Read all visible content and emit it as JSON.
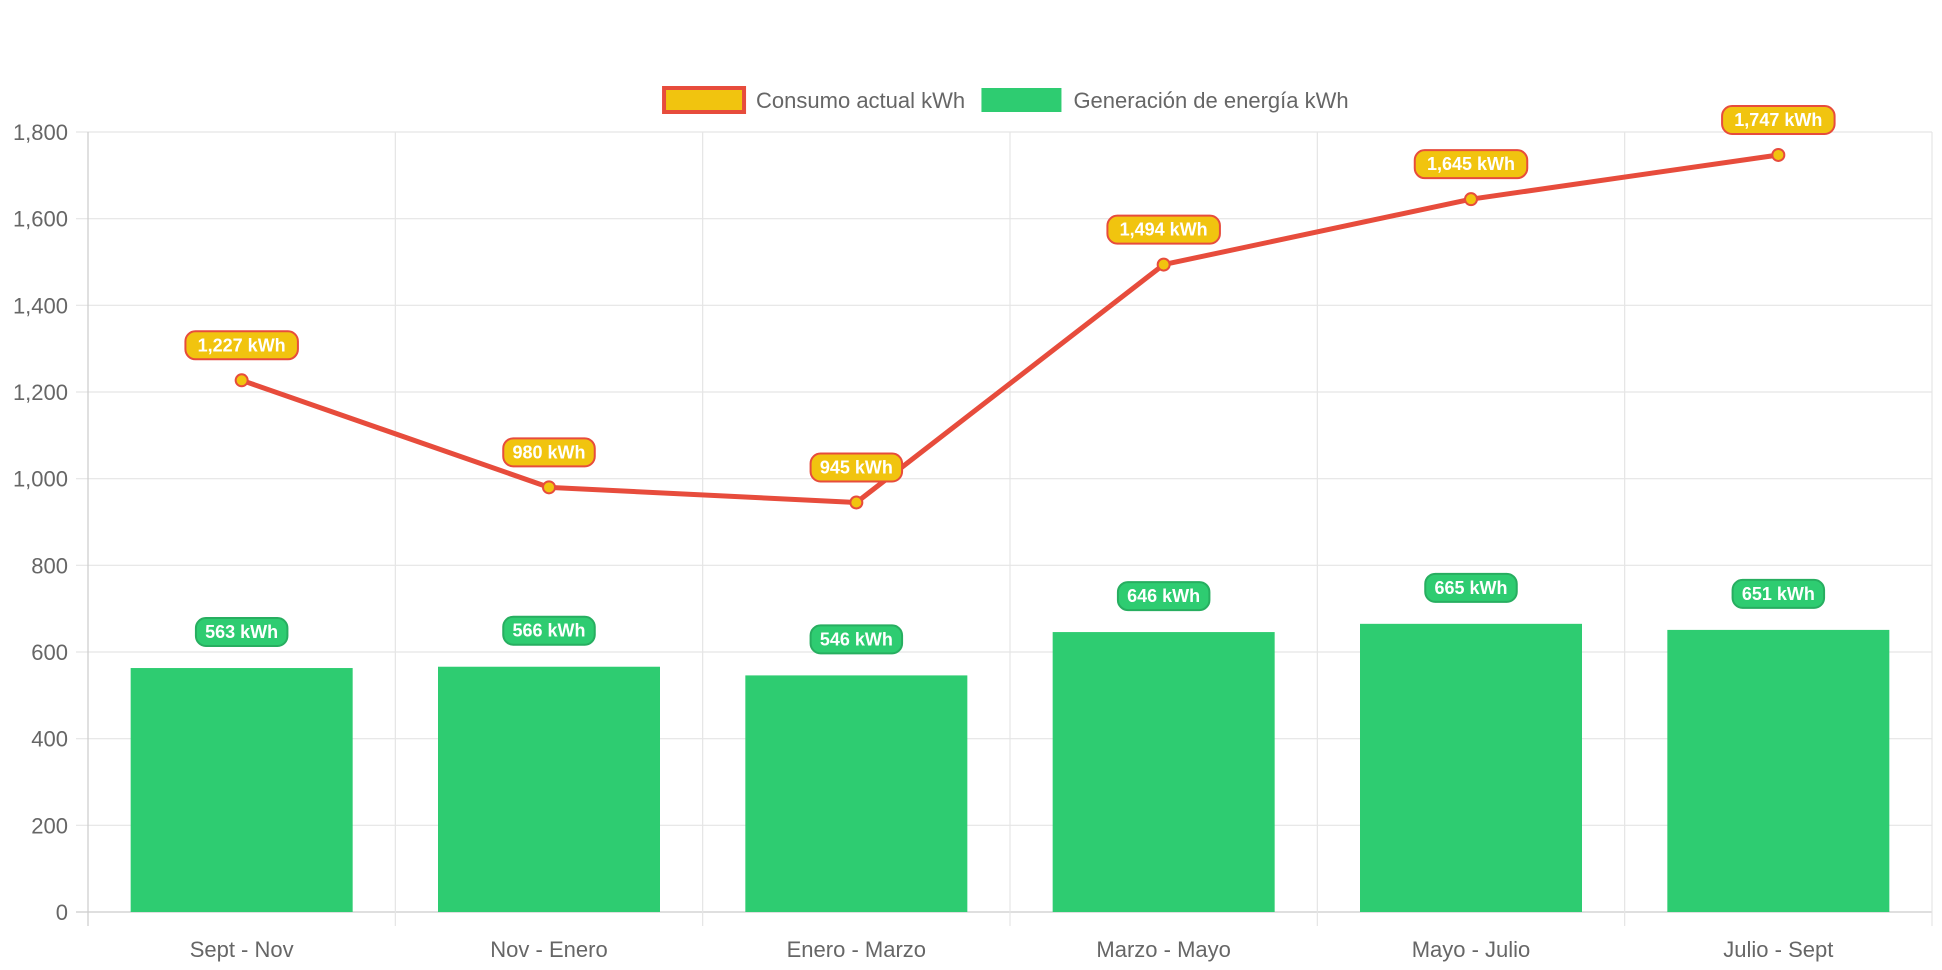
{
  "chart_data": {
    "type": "bar",
    "title": "",
    "xlabel": "",
    "ylabel": "",
    "categories": [
      "Sept - Nov",
      "Nov - Enero",
      "Enero - Marzo",
      "Marzo - Mayo",
      "Mayo - Julio",
      "Julio - Sept"
    ],
    "ylim": [
      0,
      1800
    ],
    "yticks": [
      0,
      200,
      400,
      600,
      800,
      1000,
      1200,
      1400,
      1600,
      1800
    ],
    "ytick_labels": [
      "0",
      "200",
      "400",
      "600",
      "800",
      "1,000",
      "1,200",
      "1,400",
      "1,600",
      "1,800"
    ],
    "grid": true,
    "legend_position": "top",
    "series": [
      {
        "name": "Consumo actual kWh",
        "type": "line",
        "values": [
          1227,
          980,
          945,
          1494,
          1645,
          1747
        ],
        "data_labels": [
          "1,227 kWh",
          "980 kWh",
          "945 kWh",
          "1,494 kWh",
          "1,645 kWh",
          "1,747 kWh"
        ],
        "line_color": "#e74c3c",
        "fill_color": "#f1c40f"
      },
      {
        "name": "Generación de energía kWh",
        "type": "bar",
        "values": [
          563,
          566,
          546,
          646,
          665,
          651
        ],
        "data_labels": [
          "563 kWh",
          "566 kWh",
          "546 kWh",
          "646 kWh",
          "665 kWh",
          "651 kWh"
        ],
        "fill_color": "#2ecc71"
      }
    ],
    "colors": {
      "grid": "#e5e5e5",
      "axis": "#cccccc",
      "tick_text": "#666666"
    }
  }
}
